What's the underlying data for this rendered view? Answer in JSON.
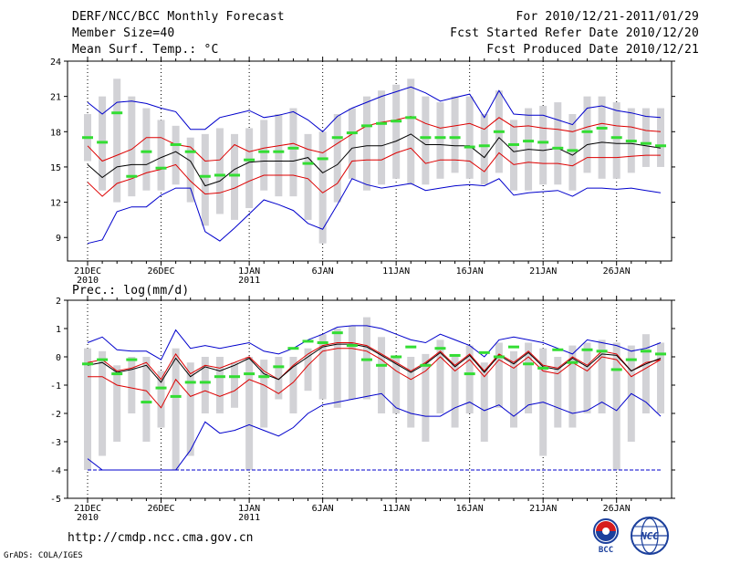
{
  "header": {
    "title": "DERF/NCC/BCC Monthly Forecast",
    "member_size": "Member Size=40",
    "variable1": "Mean Surf. Temp.: °C",
    "period": "For 2010/12/21-2011/01/29",
    "start_date": "Fcst Started Refer Date 2010/12/20",
    "produced_date": "Fcst Produced Date 2010/12/21"
  },
  "footer": {
    "url": "http://cmdp.ncc.cma.gov.cn",
    "credit": "GrADS: COLA/IGES",
    "logo_bcc": "BCC",
    "logo_ncc": "NCC"
  },
  "colors": {
    "ensemble_max_min": "#0000cc",
    "quartile": "#dd0000",
    "median": "#000000",
    "mean": "#33dd33",
    "box": "#d2d2d6"
  },
  "chart_data": [
    {
      "type": "line",
      "title": "Mean Surf. Temp.: °C",
      "days": 40,
      "x_tick_labels": [
        "21DEC",
        "26DEC",
        "1JAN",
        "6JAN",
        "11JAN",
        "16JAN",
        "21JAN",
        "26JAN"
      ],
      "x_tick_days": [
        0,
        5,
        11,
        16,
        21,
        26,
        31,
        36
      ],
      "year_labels": [
        {
          "day": 0,
          "text": "2010"
        },
        {
          "day": 11,
          "text": "2011"
        }
      ],
      "ylim": [
        7,
        24
      ],
      "yticks": [
        9,
        12,
        15,
        18,
        21,
        24
      ],
      "series": [
        {
          "name": "max",
          "values": [
            20.5,
            19.5,
            20.5,
            20.6,
            20.4,
            20.0,
            19.7,
            18.2,
            18.2,
            19.2,
            19.5,
            19.8,
            19.2,
            19.4,
            19.7,
            19.0,
            18.0,
            19.3,
            20.0,
            20.5,
            21.0,
            21.4,
            21.8,
            21.3,
            20.6,
            20.9,
            21.2,
            19.2,
            21.5,
            19.5,
            19.4,
            19.4,
            19.0,
            18.6,
            20.0,
            20.2,
            19.8,
            19.6,
            19.3,
            19.2
          ]
        },
        {
          "name": "upper_quartile",
          "values": [
            16.8,
            15.5,
            16.0,
            16.5,
            17.5,
            17.5,
            16.9,
            16.7,
            15.5,
            15.6,
            16.9,
            16.3,
            16.6,
            16.8,
            17.0,
            16.5,
            16.2,
            17.0,
            17.8,
            18.5,
            18.8,
            19.0,
            19.3,
            18.7,
            18.3,
            18.5,
            18.7,
            18.2,
            19.2,
            18.4,
            18.5,
            18.3,
            18.2,
            18.0,
            18.4,
            18.7,
            18.5,
            18.4,
            18.1,
            18.0
          ]
        },
        {
          "name": "median",
          "values": [
            15.2,
            14.1,
            15.0,
            15.2,
            15.2,
            15.8,
            16.3,
            15.5,
            13.4,
            13.8,
            14.8,
            15.4,
            15.5,
            15.5,
            15.5,
            15.8,
            14.5,
            15.2,
            16.6,
            16.8,
            16.8,
            17.2,
            17.8,
            16.9,
            16.9,
            16.8,
            16.8,
            15.8,
            17.5,
            16.3,
            16.5,
            16.4,
            16.6,
            16.0,
            16.9,
            17.1,
            17.0,
            17.0,
            16.8,
            16.6
          ]
        },
        {
          "name": "lower_quartile",
          "values": [
            13.7,
            12.5,
            13.6,
            14.0,
            14.5,
            14.8,
            15.2,
            13.8,
            12.7,
            12.8,
            13.2,
            13.8,
            14.3,
            14.3,
            14.3,
            14.0,
            12.8,
            13.6,
            15.5,
            15.6,
            15.6,
            16.2,
            16.6,
            15.3,
            15.6,
            15.6,
            15.5,
            14.6,
            16.2,
            15.2,
            15.4,
            15.3,
            15.3,
            15.1,
            15.8,
            15.8,
            15.8,
            15.9,
            16.0,
            16.0
          ]
        },
        {
          "name": "min",
          "values": [
            8.5,
            8.8,
            11.2,
            11.6,
            11.6,
            12.6,
            13.2,
            13.2,
            9.5,
            8.7,
            9.8,
            11.0,
            12.2,
            11.8,
            11.3,
            10.2,
            9.7,
            11.8,
            14.0,
            13.5,
            13.2,
            13.4,
            13.6,
            13.0,
            13.2,
            13.4,
            13.5,
            13.4,
            14.0,
            12.6,
            12.8,
            12.9,
            13.0,
            12.5,
            13.2,
            13.2,
            13.1,
            13.2,
            13.0,
            12.8
          ]
        },
        {
          "name": "ens_mean",
          "values": [
            17.5,
            17.1,
            19.6,
            14.2,
            16.3,
            14.9,
            16.9,
            16.3,
            14.2,
            14.3,
            14.3,
            15.6,
            16.3,
            16.3,
            16.6,
            15.3,
            15.7,
            17.5,
            17.9,
            18.5,
            18.7,
            18.9,
            19.2,
            17.5,
            17.5,
            17.5,
            16.7,
            16.8,
            18.0,
            16.9,
            17.2,
            17.1,
            16.6,
            16.4,
            18.0,
            18.3,
            17.5,
            17.2,
            17.0,
            16.8
          ]
        },
        {
          "name": "box_high",
          "values": [
            19.5,
            21.0,
            22.5,
            21.0,
            20.0,
            19.0,
            18.5,
            17.5,
            17.8,
            18.3,
            17.8,
            18.3,
            19.0,
            19.5,
            20.0,
            17.8,
            18.0,
            19.5,
            20.0,
            21.0,
            21.5,
            22.0,
            22.5,
            21.0,
            20.5,
            21.0,
            21.0,
            19.5,
            21.5,
            19.0,
            20.0,
            20.2,
            20.5,
            19.5,
            21.0,
            21.0,
            20.5,
            20.0,
            20.0,
            20.0
          ]
        },
        {
          "name": "box_low",
          "values": [
            15.5,
            13.0,
            12.0,
            12.5,
            13.0,
            13.0,
            13.5,
            12.0,
            10.0,
            11.0,
            10.5,
            11.5,
            13.0,
            12.5,
            12.5,
            10.5,
            8.5,
            12.0,
            14.0,
            13.0,
            13.5,
            14.0,
            13.5,
            13.5,
            14.0,
            14.5,
            14.0,
            13.5,
            14.5,
            13.0,
            13.0,
            13.5,
            13.5,
            13.0,
            14.5,
            14.0,
            14.0,
            14.5,
            15.0,
            15.0
          ]
        }
      ]
    },
    {
      "type": "line",
      "title": "Prec.: log(mm/d)",
      "days": 40,
      "x_tick_labels": [
        "21DEC",
        "26DEC",
        "1JAN",
        "6JAN",
        "11JAN",
        "16JAN",
        "21JAN",
        "26JAN"
      ],
      "x_tick_days": [
        0,
        5,
        11,
        16,
        21,
        26,
        31,
        36
      ],
      "year_labels": [
        {
          "day": 0,
          "text": "2010"
        },
        {
          "day": 11,
          "text": "2011"
        }
      ],
      "ylim": [
        -5,
        2
      ],
      "yticks": [
        -5,
        -4,
        -3,
        -2,
        -1,
        0,
        1,
        2
      ],
      "series": [
        {
          "name": "max",
          "values": [
            0.5,
            0.7,
            0.25,
            0.2,
            0.2,
            -0.1,
            0.95,
            0.3,
            0.4,
            0.3,
            0.4,
            0.5,
            0.2,
            0.1,
            0.3,
            0.6,
            0.8,
            1.05,
            1.1,
            1.1,
            1.0,
            0.8,
            0.6,
            0.5,
            0.8,
            0.6,
            0.4,
            0.0,
            0.6,
            0.7,
            0.6,
            0.5,
            0.3,
            0.1,
            0.6,
            0.5,
            0.4,
            0.2,
            0.3,
            0.5
          ]
        },
        {
          "name": "upper_quartile",
          "values": [
            -0.2,
            -0.1,
            -0.5,
            -0.4,
            -0.2,
            -0.8,
            0.1,
            -0.6,
            -0.3,
            -0.4,
            -0.2,
            0.0,
            -0.5,
            -0.8,
            -0.3,
            0.1,
            0.4,
            0.5,
            0.5,
            0.4,
            0.1,
            -0.2,
            -0.5,
            -0.2,
            0.2,
            -0.3,
            0.1,
            -0.5,
            0.1,
            -0.2,
            0.2,
            -0.3,
            -0.4,
            0.0,
            -0.3,
            0.2,
            0.1,
            -0.5,
            -0.2,
            -0.1
          ]
        },
        {
          "name": "median",
          "values": [
            -0.3,
            -0.2,
            -0.55,
            -0.45,
            -0.3,
            -0.9,
            -0.05,
            -0.7,
            -0.35,
            -0.5,
            -0.3,
            -0.05,
            -0.6,
            -0.8,
            -0.35,
            0.0,
            0.35,
            0.45,
            0.45,
            0.35,
            0.05,
            -0.25,
            -0.55,
            -0.25,
            0.15,
            -0.35,
            0.05,
            -0.55,
            0.05,
            -0.25,
            0.15,
            -0.35,
            -0.45,
            -0.05,
            -0.35,
            0.1,
            0.05,
            -0.5,
            -0.25,
            -0.05
          ]
        },
        {
          "name": "lower_quartile",
          "values": [
            -0.7,
            -0.7,
            -1.0,
            -1.1,
            -1.2,
            -1.8,
            -0.8,
            -1.4,
            -1.2,
            -1.4,
            -1.2,
            -0.8,
            -1.0,
            -1.3,
            -0.9,
            -0.3,
            0.2,
            0.3,
            0.3,
            0.2,
            -0.1,
            -0.5,
            -0.8,
            -0.5,
            0.0,
            -0.5,
            -0.1,
            -0.7,
            -0.1,
            -0.4,
            0.0,
            -0.5,
            -0.6,
            -0.2,
            -0.5,
            0.0,
            -0.1,
            -0.7,
            -0.4,
            -0.1
          ]
        },
        {
          "name": "min",
          "values": [
            -3.6,
            -4.0,
            -4.0,
            -4.0,
            -4.0,
            -4.0,
            -4.0,
            -3.3,
            -2.3,
            -2.7,
            -2.6,
            -2.4,
            -2.6,
            -2.8,
            -2.5,
            -2.0,
            -1.7,
            -1.6,
            -1.5,
            -1.4,
            -1.3,
            -1.8,
            -2.0,
            -2.1,
            -2.1,
            -1.8,
            -1.6,
            -1.9,
            -1.7,
            -2.1,
            -1.7,
            -1.6,
            -1.8,
            -2.0,
            -1.9,
            -1.6,
            -1.9,
            -1.3,
            -1.6,
            -2.1
          ]
        },
        {
          "name": "ens_mean",
          "values": [
            -0.25,
            -0.1,
            -0.6,
            -0.1,
            -1.6,
            -1.1,
            -1.4,
            -0.9,
            -0.9,
            -0.7,
            -0.7,
            -0.6,
            -0.7,
            -0.35,
            0.3,
            0.55,
            0.5,
            0.85,
            0.4,
            -0.1,
            -0.3,
            0.0,
            0.35,
            -0.3,
            0.3,
            0.05,
            -0.6,
            0.15,
            0.0,
            0.35,
            -0.25,
            -0.4,
            0.25,
            -0.2,
            0.25,
            0.2,
            -0.45,
            -0.1,
            0.2,
            0.1
          ]
        },
        {
          "name": "box_high",
          "values": [
            0.3,
            0.2,
            -0.3,
            0.0,
            0.0,
            -0.5,
            0.3,
            -0.2,
            0.0,
            0.0,
            -0.2,
            0.0,
            -0.1,
            0.0,
            0.0,
            0.3,
            0.8,
            1.0,
            1.1,
            1.4,
            0.7,
            0.0,
            0.0,
            0.1,
            0.6,
            0.0,
            0.4,
            -0.2,
            0.5,
            0.2,
            0.5,
            0.3,
            0.0,
            0.4,
            0.5,
            0.6,
            0.5,
            0.4,
            0.8,
            0.5
          ]
        },
        {
          "name": "box_low",
          "values": [
            -4.0,
            -3.5,
            -3.0,
            -2.0,
            -3.0,
            -2.5,
            -4.0,
            -3.5,
            -2.0,
            -2.0,
            -1.8,
            -4.0,
            -2.5,
            -1.5,
            -2.0,
            -1.2,
            -1.5,
            -1.8,
            -1.5,
            -1.5,
            -2.0,
            -2.0,
            -2.5,
            -3.0,
            -2.0,
            -2.5,
            -2.0,
            -3.0,
            -1.8,
            -2.5,
            -2.0,
            -3.5,
            -2.5,
            -2.5,
            -2.0,
            -2.0,
            -4.0,
            -3.0,
            -2.0,
            -2.0
          ]
        }
      ]
    }
  ]
}
